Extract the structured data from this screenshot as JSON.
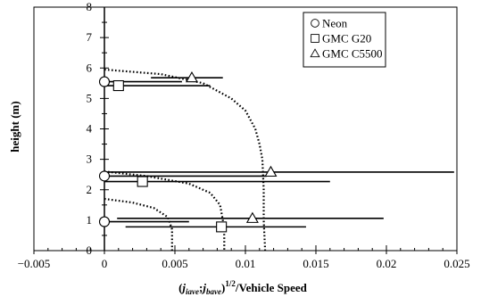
{
  "chart_data": {
    "type": "scatter",
    "title": "",
    "ylabel": "height (m)",
    "xlabel_parts": {
      "open": "(",
      "a": "j",
      "a_sub": "iave",
      "sep": ";",
      "b": "j",
      "b_sub": "bave",
      "close": ")",
      "exp": "1/2",
      "rest": "/Vehicle Speed"
    },
    "xlim": [
      -0.005,
      0.025
    ],
    "ylim": [
      0,
      8
    ],
    "x_ticks": [
      -0.005,
      0,
      0.005,
      0.01,
      0.015,
      0.02,
      0.025
    ],
    "x_tick_labels": [
      "−0.005",
      "0",
      "0.005",
      "0.01",
      "0.015",
      "0.02",
      "0.025"
    ],
    "y_ticks": [
      0,
      1,
      2,
      3,
      4,
      5,
      6,
      7,
      8
    ],
    "y_tick_labels": [
      "0",
      "1",
      "2",
      "3",
      "4",
      "5",
      "6",
      "7",
      "8"
    ],
    "grid": false,
    "legend_position": "top-right",
    "series": [
      {
        "name": "Neon",
        "marker": "circle",
        "points": [
          {
            "x": 0.0,
            "y": 5.55,
            "xerr": [
              0.0,
              0.0055
            ]
          },
          {
            "x": 0.0,
            "y": 2.45,
            "xerr": [
              0.0,
              0.0115
            ]
          },
          {
            "x": 0.0,
            "y": 0.95,
            "xerr": [
              0.0,
              0.006
            ]
          }
        ]
      },
      {
        "name": "GMC G20",
        "marker": "square",
        "points": [
          {
            "x": 0.001,
            "y": 5.42,
            "xerr": [
              0.0,
              0.0075
            ]
          },
          {
            "x": 0.0027,
            "y": 2.27,
            "xerr": [
              0.0,
              0.016
            ]
          },
          {
            "x": 0.0083,
            "y": 0.78,
            "xerr": [
              0.0015,
              0.0143
            ]
          }
        ]
      },
      {
        "name": "GMC C5500",
        "marker": "triangle",
        "points": [
          {
            "x": 0.0062,
            "y": 5.68,
            "xerr": [
              0.0033,
              0.0084
            ]
          },
          {
            "x": 0.0118,
            "y": 2.58,
            "xerr": [
              0.0,
              0.0248
            ]
          },
          {
            "x": 0.0105,
            "y": 1.06,
            "xerr": [
              0.0009,
              0.0198
            ]
          }
        ]
      }
    ],
    "curves": [
      {
        "style": "dotted",
        "points": [
          [
            0.0,
            5.95
          ],
          [
            0.004,
            5.8
          ],
          [
            0.007,
            5.5
          ],
          [
            0.009,
            5.0
          ],
          [
            0.01,
            4.6
          ],
          [
            0.0107,
            4.0
          ],
          [
            0.011,
            3.5
          ],
          [
            0.0112,
            3.0
          ],
          [
            0.0113,
            2.0
          ],
          [
            0.0113,
            1.0
          ],
          [
            0.0114,
            0.0
          ]
        ]
      },
      {
        "style": "dotted",
        "points": [
          [
            0.0,
            2.6
          ],
          [
            0.003,
            2.45
          ],
          [
            0.006,
            2.2
          ],
          [
            0.0075,
            1.9
          ],
          [
            0.0082,
            1.5
          ],
          [
            0.0084,
            1.0
          ],
          [
            0.0085,
            0.5
          ],
          [
            0.0085,
            0.0
          ]
        ]
      },
      {
        "style": "dotted",
        "points": [
          [
            0.0,
            1.7
          ],
          [
            0.002,
            1.58
          ],
          [
            0.0035,
            1.4
          ],
          [
            0.0045,
            1.1
          ],
          [
            0.0048,
            0.7
          ],
          [
            0.0048,
            0.3
          ],
          [
            0.0048,
            0.0
          ]
        ]
      }
    ]
  },
  "icons": {
    "circle": "circle-marker-icon",
    "square": "square-marker-icon",
    "triangle": "triangle-marker-icon"
  }
}
